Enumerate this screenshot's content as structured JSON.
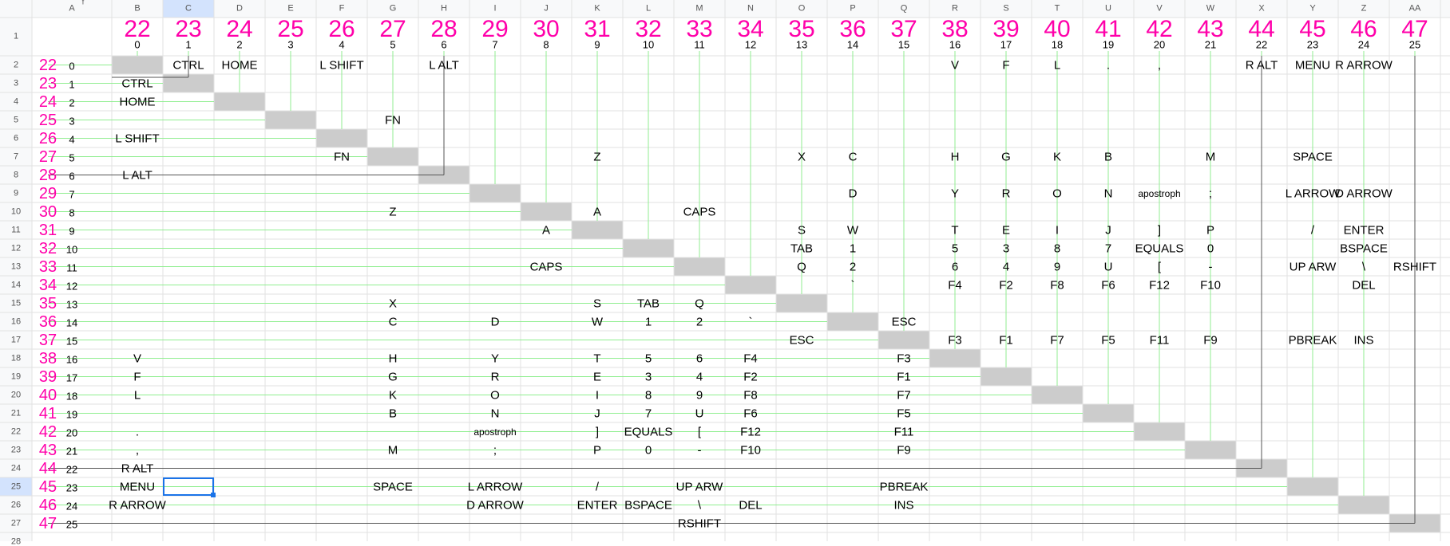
{
  "spreadsheet": {
    "top_fragment": "f",
    "column_letters": [
      "A",
      "B",
      "C",
      "D",
      "E",
      "F",
      "G",
      "H",
      "I",
      "J",
      "K",
      "L",
      "M",
      "N",
      "O",
      "P",
      "Q",
      "R",
      "S",
      "T",
      "U",
      "V",
      "W",
      "X",
      "Y",
      "Z",
      "AA"
    ],
    "row_numbers": [
      "1",
      "2",
      "3",
      "4",
      "5",
      "6",
      "7",
      "8",
      "9",
      "10",
      "11",
      "12",
      "13",
      "14",
      "15",
      "16",
      "17",
      "18",
      "19",
      "20",
      "21",
      "22",
      "23",
      "24",
      "25",
      "26",
      "27",
      "28"
    ],
    "header_row_big": [
      "22",
      "23",
      "24",
      "25",
      "26",
      "27",
      "28",
      "29",
      "30",
      "31",
      "32",
      "33",
      "34",
      "35",
      "36",
      "37",
      "38",
      "39",
      "40",
      "41",
      "42",
      "43",
      "44",
      "45",
      "46",
      "47"
    ],
    "header_row_small": [
      "0",
      "1",
      "2",
      "3",
      "4",
      "5",
      "6",
      "7",
      "8",
      "9",
      "10",
      "11",
      "12",
      "13",
      "14",
      "15",
      "16",
      "17",
      "18",
      "19",
      "20",
      "21",
      "22",
      "23",
      "24",
      "25"
    ],
    "col_a_big": [
      "22",
      "23",
      "24",
      "25",
      "26",
      "27",
      "28",
      "29",
      "30",
      "31",
      "32",
      "33",
      "34",
      "35",
      "36",
      "37",
      "38",
      "39",
      "40",
      "41",
      "42",
      "43",
      "44",
      "45",
      "46",
      "47"
    ],
    "col_a_small": [
      "0",
      "1",
      "2",
      "3",
      "4",
      "5",
      "6",
      "7",
      "8",
      "9",
      "10",
      "11",
      "12",
      "13",
      "14",
      "15",
      "16",
      "17",
      "18",
      "19",
      "20",
      "21",
      "22",
      "23",
      "24",
      "25"
    ],
    "row2_labels": [
      "CTRL",
      "HOME",
      "L SHIFT",
      "L ALT",
      "V",
      "F",
      "L",
      ".",
      ",",
      "R ALT",
      "MENU",
      "R ARROW"
    ],
    "upper_labels": [
      "FN",
      "Z",
      "X",
      "C",
      "H",
      "G",
      "K",
      "B",
      "M",
      "SPACE",
      "D",
      "Y",
      "R",
      "O",
      "N",
      "apostroph",
      ";",
      "L ARROW",
      "D ARROW",
      "A",
      "CAPS",
      "S",
      "W",
      "T",
      "E",
      "I",
      "J",
      "]",
      "P",
      "/",
      "ENTER",
      "TAB",
      "1",
      "5",
      "3",
      "8",
      "7",
      "EQUALS",
      "0",
      "BSPACE",
      "Q",
      "2",
      "6",
      "4",
      "9",
      "U",
      "[",
      "-",
      "UP ARW",
      "\\",
      "RSHIFT",
      "`",
      "F4",
      "F2",
      "F8",
      "F6",
      "F12",
      "F10",
      "DEL",
      "ESC",
      "F3",
      "F1",
      "F7",
      "F5",
      "F11",
      "F9",
      "PBREAK",
      "INS"
    ],
    "left_labels": [
      "CTRL",
      "HOME",
      "L SHIFT",
      "FN",
      "L ALT",
      "Z",
      "A",
      "CAPS",
      "X",
      "S",
      "TAB",
      "Q",
      "C",
      "D",
      "W",
      "1",
      "2",
      "`",
      "ESC",
      "V",
      "H",
      "Y",
      "T",
      "5",
      "6",
      "F4",
      "F3",
      "F",
      "G",
      "R",
      "E",
      "3",
      "4",
      "F2",
      "F1",
      "L",
      "K",
      "O",
      "I",
      "8",
      "9",
      "F8",
      "F7",
      "B",
      "N",
      "J",
      "7",
      "U",
      "F6",
      "F5",
      ".",
      "apostroph",
      "]",
      "EQUALS",
      "[",
      "F12",
      "F11",
      ",",
      "M",
      ";",
      "P",
      "0",
      "-",
      "F10",
      "F9",
      "R ALT",
      "MENU",
      "SPACE",
      "L ARROW",
      "/",
      "UP ARW",
      "PBREAK",
      "R ARROW",
      "D ARROW",
      "ENTER",
      "BSPACE",
      "\\",
      "DEL",
      "INS",
      "RSHIFT"
    ],
    "colors": {
      "accent_pink": "#ff00aa",
      "diagonal_fill": "#cccccc",
      "line_green": "#90ee90",
      "selection_blue": "#1a73e8"
    }
  }
}
